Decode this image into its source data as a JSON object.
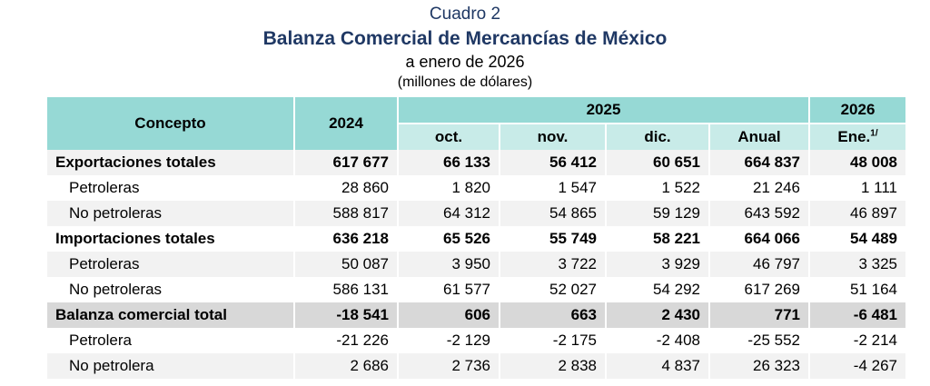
{
  "title": {
    "line1": "Cuadro 2",
    "line2": "Balanza Comercial de Mercancías de México",
    "line3": "a enero de 2026",
    "line4": "(millones de dólares)"
  },
  "header": {
    "concepto": "Concepto",
    "y2024": "2024",
    "y2025": "2025",
    "y2026": "2026",
    "months": [
      "oct.",
      "nov.",
      "dic.",
      "Anual"
    ],
    "ene": "Ene.",
    "ene_note": "1/"
  },
  "rows": [
    {
      "label": "Exportaciones totales",
      "values": [
        "617 677",
        "66 133",
        "56 412",
        "60 651",
        "664 837",
        "48 008"
      ]
    },
    {
      "label": "Petroleras",
      "values": [
        "28 860",
        "1 820",
        "1 547",
        "1 522",
        "21 246",
        "1 111"
      ]
    },
    {
      "label": "No petroleras",
      "values": [
        "588 817",
        "64 312",
        "54 865",
        "59 129",
        "643 592",
        "46 897"
      ]
    },
    {
      "label": "Importaciones totales",
      "values": [
        "636 218",
        "65 526",
        "55 749",
        "58 221",
        "664 066",
        "54 489"
      ]
    },
    {
      "label": "Petroleras",
      "values": [
        "50 087",
        "3 950",
        "3 722",
        "3 929",
        "46 797",
        "3 325"
      ]
    },
    {
      "label": "No petroleras",
      "values": [
        "586 131",
        "61 577",
        "52 027",
        "54 292",
        "617 269",
        "51 164"
      ]
    },
    {
      "label": "Balanza comercial total",
      "values": [
        "-18 541",
        "606",
        "663",
        "2 430",
        "771",
        "-6 481"
      ]
    },
    {
      "label": "Petrolera",
      "values": [
        "-21 226",
        "-2 129",
        "-2 175",
        "-2 408",
        "-25 552",
        "-2 214"
      ]
    },
    {
      "label": "No petrolera",
      "values": [
        "2 686",
        "2 736",
        "2 838",
        "4 837",
        "26 323",
        "-4 267"
      ]
    }
  ]
}
